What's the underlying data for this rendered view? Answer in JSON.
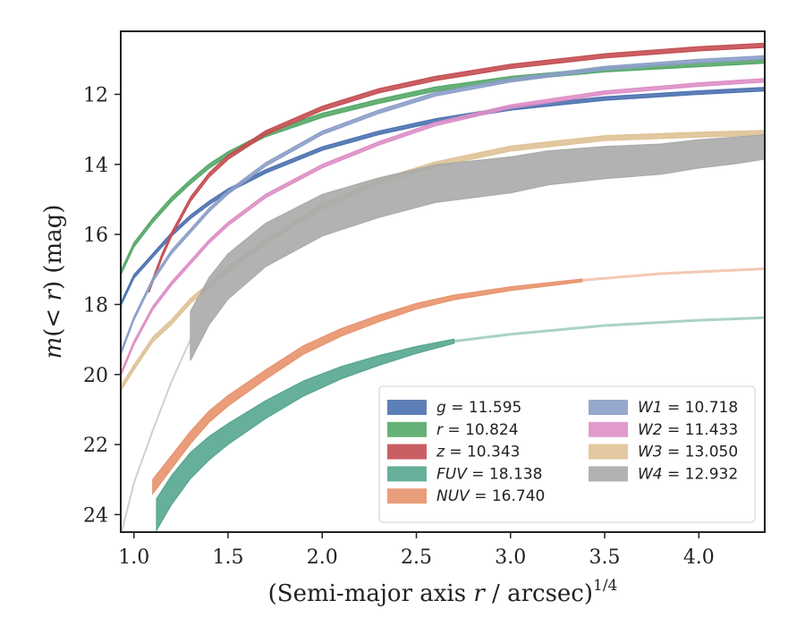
{
  "chart_data": {
    "type": "line",
    "xlabel": "(Semi-major axis r / arcsec)",
    "xlabel_parts": {
      "pre": "(Semi-major axis ",
      "var": "r",
      "post": " / arcsec)",
      "sup": "1/4"
    },
    "ylabel": "m(< r) (mag)",
    "ylabel_parts": {
      "m": "m",
      "open": "(",
      "lt": "< ",
      "r": "r",
      "close": ")",
      "unit": " (mag)"
    },
    "xlim": [
      0.93,
      4.35
    ],
    "ylim": [
      24.5,
      10.2
    ],
    "y_inverted": true,
    "x_ticks": [
      "1.0",
      "1.5",
      "2.0",
      "2.5",
      "3.0",
      "3.5",
      "4.0"
    ],
    "y_ticks": [
      "12",
      "14",
      "16",
      "18",
      "20",
      "22",
      "24"
    ],
    "grid": false,
    "legend_position": "lower-right",
    "series": [
      {
        "name": "g",
        "value": "11.595",
        "color": "#4c72b0",
        "x": [
          0.93,
          1.0,
          1.1,
          1.2,
          1.3,
          1.4,
          1.5,
          1.7,
          2.0,
          2.3,
          2.6,
          3.0,
          3.5,
          4.0,
          4.35
        ],
        "y": [
          18.0,
          17.2,
          16.6,
          16.0,
          15.5,
          15.1,
          14.75,
          14.2,
          13.55,
          13.1,
          12.75,
          12.4,
          12.12,
          11.95,
          11.85
        ],
        "half_width": 0.05,
        "fade_from": null
      },
      {
        "name": "r",
        "value": "10.824",
        "color": "#55a868",
        "x": [
          0.93,
          1.0,
          1.1,
          1.2,
          1.3,
          1.4,
          1.5,
          1.7,
          2.0,
          2.3,
          2.6,
          3.0,
          3.5,
          4.0,
          4.35
        ],
        "y": [
          17.1,
          16.3,
          15.6,
          15.0,
          14.5,
          14.05,
          13.7,
          13.15,
          12.6,
          12.2,
          11.85,
          11.55,
          11.3,
          11.15,
          11.05
        ],
        "half_width": 0.06,
        "fade_from": null
      },
      {
        "name": "z",
        "value": "10.343",
        "color": "#c44e52",
        "x": [
          1.08,
          1.15,
          1.2,
          1.3,
          1.4,
          1.5,
          1.7,
          2.0,
          2.3,
          2.6,
          3.0,
          3.5,
          4.0,
          4.35
        ],
        "y": [
          17.6,
          16.6,
          16.0,
          15.0,
          14.3,
          13.8,
          13.1,
          12.4,
          11.9,
          11.55,
          11.2,
          10.9,
          10.7,
          10.6
        ],
        "half_width": 0.06,
        "fade_from": null
      },
      {
        "name": "FUV",
        "value": "18.138",
        "color": "#55a68f",
        "x": [
          1.12,
          1.2,
          1.3,
          1.4,
          1.5,
          1.7,
          1.9,
          2.1,
          2.3,
          2.5,
          2.7,
          3.0,
          3.5,
          4.0,
          4.35
        ],
        "y": [
          24.0,
          23.3,
          22.6,
          22.1,
          21.7,
          21.0,
          20.4,
          19.95,
          19.6,
          19.3,
          19.05,
          18.85,
          18.6,
          18.45,
          18.38
        ],
        "half_width_start": 0.45,
        "half_width_end": 0.06,
        "fade_from": 2.7
      },
      {
        "name": "NUV",
        "value": "16.740",
        "color": "#e8926c",
        "x": [
          1.1,
          1.2,
          1.3,
          1.4,
          1.5,
          1.7,
          1.9,
          2.1,
          2.3,
          2.5,
          2.7,
          3.0,
          3.4,
          3.8,
          4.35
        ],
        "y": [
          23.2,
          22.5,
          21.8,
          21.2,
          20.75,
          20.0,
          19.3,
          18.8,
          18.4,
          18.05,
          17.8,
          17.55,
          17.3,
          17.12,
          16.98
        ],
        "half_width_start": 0.2,
        "half_width_end": 0.04,
        "fade_from": 3.38
      },
      {
        "name": "W1",
        "value": "10.718",
        "color": "#8c9fc8",
        "x": [
          0.93,
          1.0,
          1.1,
          1.2,
          1.3,
          1.4,
          1.5,
          1.7,
          2.0,
          2.3,
          2.6,
          3.0,
          3.5,
          4.0,
          4.35
        ],
        "y": [
          19.4,
          18.4,
          17.3,
          16.5,
          15.9,
          15.3,
          14.8,
          14.0,
          13.1,
          12.5,
          12.0,
          11.6,
          11.25,
          11.05,
          10.95
        ],
        "half_width": 0.05,
        "fade_from": null
      },
      {
        "name": "W2",
        "value": "11.433",
        "color": "#dd8fc6",
        "x": [
          0.93,
          1.0,
          1.1,
          1.2,
          1.3,
          1.4,
          1.5,
          1.7,
          2.0,
          2.3,
          2.6,
          3.0,
          3.5,
          4.0,
          4.35
        ],
        "y": [
          20.0,
          19.1,
          18.1,
          17.4,
          16.8,
          16.2,
          15.7,
          14.9,
          14.05,
          13.4,
          12.85,
          12.35,
          11.95,
          11.72,
          11.6
        ],
        "half_width": 0.05,
        "fade_from": null
      },
      {
        "name": "W3",
        "value": "13.050",
        "color": "#dfc296",
        "x": [
          0.93,
          1.0,
          1.1,
          1.2,
          1.3,
          1.5,
          1.7,
          2.0,
          2.3,
          2.6,
          3.0,
          3.5,
          4.0,
          4.35
        ],
        "y": [
          20.4,
          19.8,
          19.0,
          18.5,
          17.9,
          17.0,
          16.2,
          15.2,
          14.5,
          14.0,
          13.55,
          13.25,
          13.15,
          13.1
        ],
        "half_width": 0.07,
        "fade_from": null
      },
      {
        "name": "W4",
        "value": "12.932",
        "color": "#aaaaaa",
        "x": [
          1.3,
          1.4,
          1.5,
          1.7,
          2.0,
          2.3,
          2.6,
          3.0,
          3.2,
          3.5,
          3.8,
          4.0,
          4.2,
          4.35
        ],
        "y": [
          18.9,
          17.9,
          17.2,
          16.3,
          15.45,
          14.95,
          14.55,
          14.3,
          14.1,
          13.95,
          13.85,
          13.7,
          13.6,
          13.5
        ],
        "half_width_start": 0.7,
        "half_width_end": 0.35,
        "fade_from": null,
        "faint_lead_x": [
          0.93,
          1.0,
          1.1,
          1.2,
          1.3
        ],
        "faint_lead_y": [
          24.6,
          23.1,
          21.6,
          20.2,
          19.0
        ]
      }
    ]
  }
}
